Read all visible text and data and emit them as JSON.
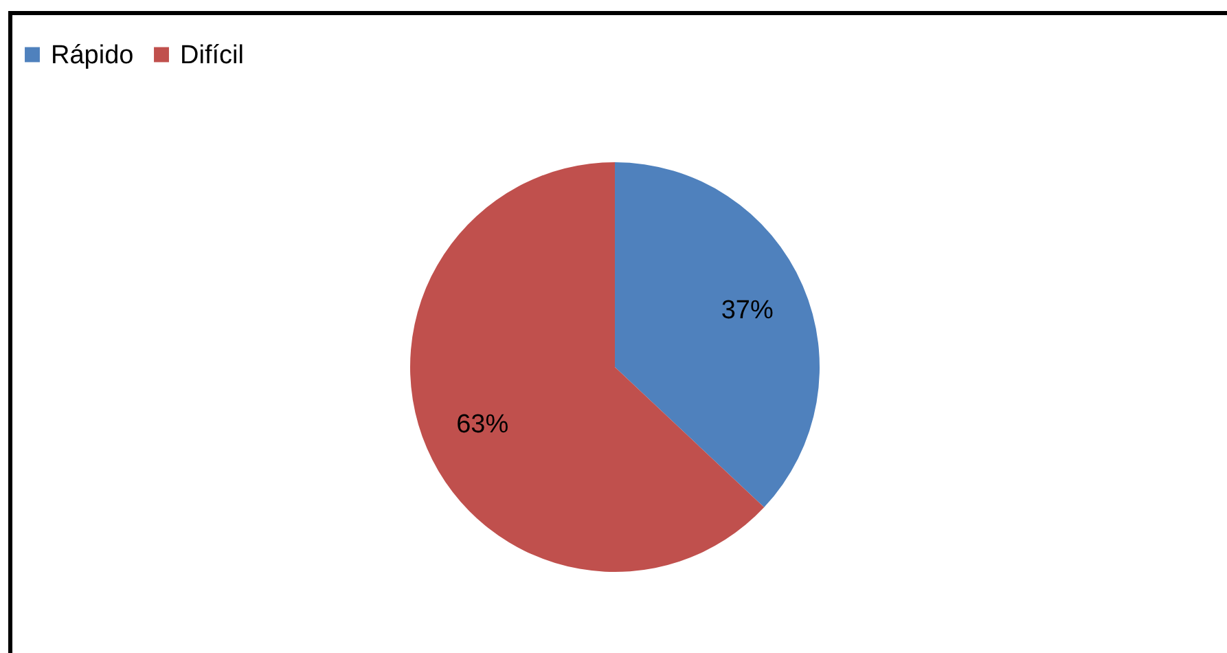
{
  "chart_data": {
    "type": "pie",
    "categories": [
      "Rápido",
      "Difícil"
    ],
    "values": [
      37,
      63
    ],
    "colors": [
      "#4f81bd",
      "#c0504d"
    ],
    "value_labels": [
      "37%",
      "63%"
    ],
    "legend": "top"
  }
}
